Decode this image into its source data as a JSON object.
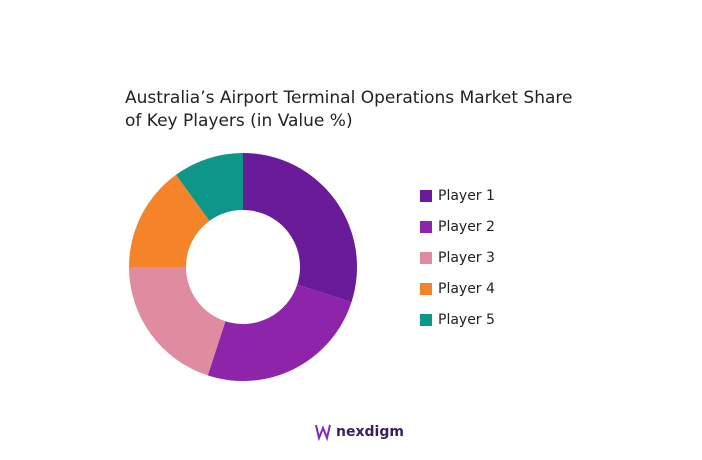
{
  "chart_data": {
    "type": "donut",
    "title": [
      "Australia’s Airport Terminal Operations Market Share",
      "of Key Players (in Value %)"
    ],
    "categories": [
      "Player 1",
      "Player 2",
      "Player 3",
      "Player 4",
      "Player 5"
    ],
    "values": [
      30,
      25,
      20,
      15,
      10
    ],
    "colors": [
      "#6a1b9a",
      "#8e24aa",
      "#e08ca0",
      "#f4832a",
      "#0e9688"
    ],
    "legend": "right"
  },
  "brand": "nexdigm"
}
